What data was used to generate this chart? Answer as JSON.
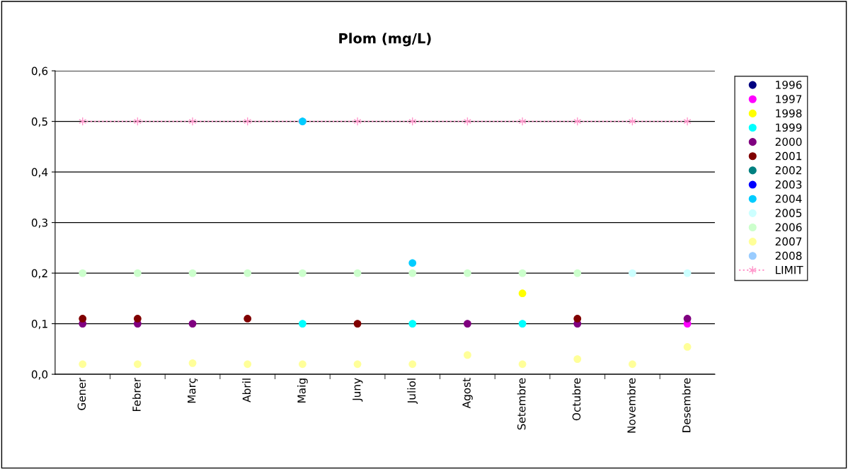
{
  "chart_data": {
    "type": "scatter",
    "title": "Plom (mg/L)",
    "categories": [
      "Gener",
      "Febrer",
      "Març",
      "Abril",
      "Maig",
      "Juny",
      "Juliol",
      "Agost",
      "Setembre",
      "Octubre",
      "Novembre",
      "Desembre"
    ],
    "ylim": [
      0,
      0.6
    ],
    "yticks": [
      {
        "value": 0,
        "label": "0,0"
      },
      {
        "value": 0.1,
        "label": "0,1"
      },
      {
        "value": 0.2,
        "label": "0,2"
      },
      {
        "value": 0.3,
        "label": "0,3"
      },
      {
        "value": 0.4,
        "label": "0,4"
      },
      {
        "value": 0.5,
        "label": "0,5"
      },
      {
        "value": 0.6,
        "label": "0,6"
      }
    ],
    "grid": "y",
    "legend": "right",
    "marker": "circle",
    "series": [
      {
        "name": "1996",
        "color": "#000080",
        "values": [
          null,
          null,
          null,
          null,
          null,
          null,
          null,
          null,
          null,
          null,
          null,
          null
        ]
      },
      {
        "name": "1997",
        "color": "#ff00ff",
        "values": [
          null,
          null,
          null,
          null,
          null,
          null,
          null,
          null,
          null,
          null,
          null,
          0.1
        ]
      },
      {
        "name": "1998",
        "color": "#ffff00",
        "values": [
          null,
          null,
          null,
          null,
          null,
          null,
          null,
          null,
          0.16,
          null,
          null,
          null
        ]
      },
      {
        "name": "1999",
        "color": "#00ffff",
        "values": [
          null,
          null,
          null,
          null,
          0.1,
          null,
          0.1,
          null,
          0.1,
          null,
          null,
          null
        ]
      },
      {
        "name": "2000",
        "color": "#800080",
        "values": [
          0.1,
          0.1,
          0.1,
          null,
          null,
          null,
          null,
          0.1,
          null,
          0.1,
          null,
          0.11
        ]
      },
      {
        "name": "2001",
        "color": "#800000",
        "values": [
          0.11,
          0.11,
          null,
          0.11,
          null,
          0.1,
          null,
          null,
          null,
          0.11,
          null,
          null
        ]
      },
      {
        "name": "2002",
        "color": "#008080",
        "values": [
          null,
          null,
          null,
          null,
          null,
          null,
          null,
          null,
          null,
          null,
          null,
          null
        ]
      },
      {
        "name": "2003",
        "color": "#0000ff",
        "values": [
          null,
          null,
          null,
          null,
          null,
          null,
          null,
          null,
          null,
          null,
          null,
          null
        ]
      },
      {
        "name": "2004",
        "color": "#00ccff",
        "values": [
          null,
          null,
          null,
          null,
          0.5,
          null,
          0.22,
          null,
          null,
          null,
          null,
          null
        ]
      },
      {
        "name": "2005",
        "color": "#ccffff",
        "values": [
          null,
          null,
          null,
          null,
          null,
          null,
          null,
          null,
          null,
          null,
          0.2,
          0.2
        ]
      },
      {
        "name": "2006",
        "color": "#ccffcc",
        "values": [
          0.2,
          0.2,
          0.2,
          0.2,
          0.2,
          0.2,
          0.2,
          0.2,
          0.2,
          0.2,
          null,
          null
        ]
      },
      {
        "name": "2007",
        "color": "#ffff99",
        "values": [
          0.02,
          0.02,
          0.022,
          0.02,
          0.02,
          0.02,
          0.02,
          0.038,
          0.02,
          0.03,
          0.02,
          0.054
        ]
      },
      {
        "name": "2008",
        "color": "#99ccff",
        "values": [
          null,
          null,
          null,
          null,
          null,
          null,
          null,
          null,
          null,
          null,
          null,
          null
        ]
      },
      {
        "name": "LIMIT",
        "type": "line",
        "color": "#ff99cc",
        "marker": "cross",
        "line_style": "dotted",
        "values": [
          0.5,
          0.5,
          0.5,
          0.5,
          0.5,
          0.5,
          0.5,
          0.5,
          0.5,
          0.5,
          0.5,
          0.5
        ]
      }
    ]
  }
}
